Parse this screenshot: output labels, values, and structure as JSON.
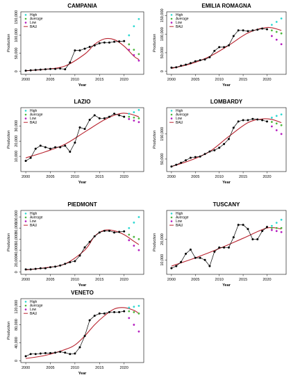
{
  "colors": {
    "high": "#2fd9d2",
    "average": "#4fb840",
    "low": "#b51fbf",
    "actual": "#000000",
    "bau": "#b8222e"
  },
  "legend": [
    "High",
    "Average",
    "Low",
    "BAU"
  ],
  "chart_data": [
    {
      "type": "line",
      "title": "CAMPANIA",
      "xlabel": "Year",
      "ylabel": "Production",
      "xlim": [
        1999,
        2024
      ],
      "ylim": [
        -8000,
        165000
      ],
      "xticks": [
        2000,
        2005,
        2010,
        2015,
        2020
      ],
      "yticks": [
        0,
        50000,
        100000,
        150000
      ],
      "ytick_labels": [
        "0",
        "50,000",
        "100,000",
        "150,000"
      ],
      "actual": {
        "x": [
          2000,
          2001,
          2002,
          2003,
          2004,
          2005,
          2006,
          2007,
          2008,
          2009,
          2010,
          2011,
          2012,
          2013,
          2014,
          2015,
          2016,
          2017,
          2018,
          2019,
          2020
        ],
        "y": [
          2000,
          3000,
          4000,
          5000,
          6000,
          7000,
          7000,
          8000,
          6000,
          25000,
          58000,
          58000,
          63000,
          68000,
          72000,
          78000,
          80000,
          80000,
          82000,
          83000,
          84000
        ]
      },
      "bau": {
        "x": [
          2000,
          2004,
          2008,
          2012,
          2014,
          2016,
          2018,
          2020,
          2022,
          2023
        ],
        "y": [
          2000,
          6000,
          15000,
          48000,
          75000,
          90000,
          88000,
          70000,
          42000,
          33000
        ]
      },
      "high": {
        "x": [
          2021,
          2022,
          2023
        ],
        "y": [
          100000,
          125000,
          145000
        ]
      },
      "average": {
        "x": [
          2021,
          2022,
          2023
        ],
        "y": [
          75000,
          60000,
          48000
        ]
      },
      "low": {
        "x": [
          2021,
          2022,
          2023
        ],
        "y": [
          60000,
          45000,
          30000
        ]
      }
    },
    {
      "type": "line",
      "title": "EMILIA ROMAGNA",
      "xlabel": "Year",
      "ylabel": "Production",
      "xlim": [
        1999,
        2024
      ],
      "ylim": [
        -8000,
        160000
      ],
      "xticks": [
        2000,
        2005,
        2010,
        2015,
        2020
      ],
      "yticks": [
        0,
        50000,
        100000,
        150000
      ],
      "ytick_labels": [
        "0",
        "50,000",
        "100,000",
        "150,000"
      ],
      "actual": {
        "x": [
          2000,
          2001,
          2002,
          2003,
          2004,
          2005,
          2006,
          2007,
          2008,
          2009,
          2010,
          2011,
          2012,
          2013,
          2014,
          2015,
          2016,
          2017,
          2018,
          2019,
          2020
        ],
        "y": [
          10000,
          11000,
          15000,
          18000,
          22000,
          27000,
          30000,
          32000,
          38000,
          55000,
          65000,
          65000,
          70000,
          95000,
          110000,
          110000,
          108000,
          110000,
          112000,
          115000,
          113000
        ]
      },
      "bau": {
        "x": [
          2000,
          2004,
          2008,
          2012,
          2016,
          2020,
          2023
        ],
        "y": [
          8000,
          20000,
          40000,
          70000,
          103000,
          118000,
          110000
        ]
      },
      "high": {
        "x": [
          2021,
          2022,
          2023
        ],
        "y": [
          125000,
          133000,
          142000
        ]
      },
      "average": {
        "x": [
          2021,
          2022,
          2023
        ],
        "y": [
          110000,
          106000,
          102000
        ]
      },
      "low": {
        "x": [
          2021,
          2022,
          2023
        ],
        "y": [
          95000,
          85000,
          73000
        ]
      }
    },
    {
      "type": "line",
      "title": "LAZIO",
      "xlabel": "Year",
      "ylabel": "Production",
      "xlim": [
        1999,
        2024
      ],
      "ylim": [
        0,
        42000
      ],
      "xticks": [
        2000,
        2005,
        2010,
        2015,
        2020
      ],
      "yticks": [
        10000,
        20000,
        30000
      ],
      "ytick_labels": [
        "10,000",
        "20,000",
        "30,000"
      ],
      "actual": {
        "x": [
          2000,
          2001,
          2002,
          2003,
          2004,
          2005,
          2006,
          2007,
          2008,
          2009,
          2010,
          2011,
          2012,
          2013,
          2014,
          2015,
          2016,
          2017,
          2018,
          2019,
          2020
        ],
        "y": [
          7000,
          9000,
          15000,
          17000,
          16000,
          15000,
          16000,
          16000,
          17000,
          13000,
          19000,
          29000,
          28000,
          34000,
          37000,
          35000,
          35000,
          36000,
          38000,
          37000,
          36000
        ]
      },
      "bau": {
        "x": [
          2000,
          2004,
          2008,
          2012,
          2016,
          2019,
          2021,
          2023
        ],
        "y": [
          9000,
          13000,
          18000,
          26000,
          34000,
          38000,
          38000,
          36000
        ]
      },
      "high": {
        "x": [
          2021,
          2022,
          2023
        ],
        "y": [
          38000,
          39000,
          40500
        ]
      },
      "average": {
        "x": [
          2021,
          2022,
          2023
        ],
        "y": [
          36000,
          35500,
          35000
        ]
      },
      "low": {
        "x": [
          2021,
          2022,
          2023
        ],
        "y": [
          34500,
          33500,
          32500
        ]
      }
    },
    {
      "type": "line",
      "title": "LOMBARDY",
      "xlabel": "Year",
      "ylabel": "Production",
      "xlim": [
        1999,
        2024
      ],
      "ylim": [
        0,
        255000
      ],
      "xticks": [
        2000,
        2005,
        2010,
        2015,
        2020
      ],
      "yticks": [
        50000,
        150000
      ],
      "ytick_labels": [
        "50,000",
        "150,000"
      ],
      "actual": {
        "x": [
          2000,
          2001,
          2002,
          2003,
          2004,
          2005,
          2006,
          2007,
          2008,
          2009,
          2010,
          2011,
          2012,
          2013,
          2014,
          2015,
          2016,
          2017,
          2018,
          2019,
          2020
        ],
        "y": [
          20000,
          27000,
          35000,
          45000,
          55000,
          58000,
          60000,
          70000,
          80000,
          85000,
          95000,
          110000,
          130000,
          175000,
          200000,
          205000,
          205000,
          210000,
          208000,
          205000,
          200000
        ]
      },
      "bau": {
        "x": [
          2000,
          2004,
          2008,
          2012,
          2016,
          2019,
          2021,
          2023
        ],
        "y": [
          20000,
          45000,
          80000,
          140000,
          195000,
          210000,
          208000,
          195000
        ]
      },
      "high": {
        "x": [
          2021,
          2022,
          2023
        ],
        "y": [
          215000,
          222000,
          228000
        ]
      },
      "average": {
        "x": [
          2021,
          2022,
          2023
        ],
        "y": [
          198000,
          192000,
          185000
        ]
      },
      "low": {
        "x": [
          2021,
          2022,
          2023
        ],
        "y": [
          180000,
          165000,
          150000
        ]
      }
    },
    {
      "type": "line",
      "title": "PIEDMONT",
      "xlabel": "Year",
      "ylabel": "Production",
      "xlim": [
        1999,
        2024
      ],
      "ylim": [
        -4000,
        112000
      ],
      "xticks": [
        2000,
        2005,
        2010,
        2015,
        2020
      ],
      "yticks": [
        0,
        20000,
        40000,
        60000,
        80000,
        100000
      ],
      "ytick_labels": [
        "0",
        "20,000",
        "40,000",
        "60,000",
        "80,000",
        "100,000"
      ],
      "actual": {
        "x": [
          2000,
          2001,
          2002,
          2003,
          2004,
          2005,
          2006,
          2007,
          2008,
          2009,
          2010,
          2011,
          2012,
          2013,
          2014,
          2015,
          2016,
          2017,
          2018,
          2019,
          2020
        ],
        "y": [
          5000,
          5000,
          6000,
          7000,
          7000,
          9000,
          10000,
          12000,
          15000,
          18000,
          20000,
          30000,
          45000,
          55000,
          65000,
          72000,
          75000,
          75000,
          72000,
          73000,
          74000
        ]
      },
      "bau": {
        "x": [
          2000,
          2004,
          2008,
          2012,
          2014,
          2016,
          2018,
          2020,
          2022,
          2023
        ],
        "y": [
          4000,
          8000,
          15000,
          40000,
          65000,
          76000,
          75000,
          68000,
          56000,
          50000
        ]
      },
      "high": {
        "x": [
          2021,
          2022,
          2023
        ],
        "y": [
          80000,
          90000,
          100000
        ]
      },
      "average": {
        "x": [
          2021,
          2022,
          2023
        ],
        "y": [
          68000,
          64000,
          60000
        ]
      },
      "low": {
        "x": [
          2021,
          2022,
          2023
        ],
        "y": [
          58000,
          48000,
          40000
        ]
      }
    },
    {
      "type": "line",
      "title": "TUSCANY",
      "xlabel": "Year",
      "ylabel": "Production",
      "xlim": [
        1999,
        2024
      ],
      "ylim": [
        3000,
        34000
      ],
      "xticks": [
        2000,
        2005,
        2010,
        2015,
        2020
      ],
      "yticks": [
        10000,
        20000
      ],
      "ytick_labels": [
        "10,000",
        "20,000"
      ],
      "actual": {
        "x": [
          2000,
          2001,
          2002,
          2003,
          2004,
          2005,
          2006,
          2007,
          2008,
          2009,
          2010,
          2011,
          2012,
          2013,
          2014,
          2015,
          2016,
          2017,
          2018,
          2019,
          2020
        ],
        "y": [
          6000,
          7000,
          9000,
          13000,
          15000,
          11000,
          11000,
          10000,
          7000,
          14000,
          16000,
          16000,
          16000,
          21000,
          27000,
          27000,
          25000,
          20000,
          20000,
          24000,
          26000
        ]
      },
      "bau": {
        "x": [
          2000,
          2005,
          2010,
          2015,
          2020,
          2023
        ],
        "y": [
          7000,
          11000,
          15500,
          20500,
          25500,
          25000
        ]
      },
      "high": {
        "x": [
          2021,
          2022,
          2023
        ],
        "y": [
          26500,
          28000,
          29500
        ]
      },
      "average": {
        "x": [
          2021,
          2022,
          2023
        ],
        "y": [
          25500,
          25500,
          25500
        ]
      },
      "low": {
        "x": [
          2021,
          2022,
          2023
        ],
        "y": [
          24500,
          24000,
          23500
        ]
      }
    },
    {
      "type": "line",
      "title": "VENETO",
      "xlabel": "Year",
      "ylabel": "Production",
      "xlim": [
        1999,
        2024
      ],
      "ylim": [
        -4000,
        138000
      ],
      "xticks": [
        2000,
        2005,
        2010,
        2015,
        2020
      ],
      "yticks": [
        0,
        40000,
        80000,
        120000
      ],
      "ytick_labels": [
        "0",
        "40,000",
        "80,000",
        "120,000"
      ],
      "actual": {
        "x": [
          2000,
          2001,
          2002,
          2003,
          2004,
          2005,
          2006,
          2007,
          2008,
          2009,
          2010,
          2011,
          2012,
          2013,
          2014,
          2015,
          2016,
          2017,
          2018,
          2019,
          2020
        ],
        "y": [
          10000,
          15000,
          15000,
          16000,
          17000,
          17000,
          18000,
          20000,
          18000,
          15000,
          16000,
          30000,
          55000,
          90000,
          100000,
          105000,
          105000,
          108000,
          108000,
          108000,
          110000
        ]
      },
      "bau": {
        "x": [
          2000,
          2004,
          2008,
          2010,
          2012,
          2014,
          2016,
          2018,
          2020,
          2022,
          2023
        ],
        "y": [
          5000,
          12000,
          25000,
          35000,
          55000,
          80000,
          100000,
          115000,
          118000,
          112000,
          105000
        ]
      },
      "high": {
        "x": [
          2021,
          2022,
          2023
        ],
        "y": [
          118000,
          120000,
          122000
        ]
      },
      "average": {
        "x": [
          2021,
          2022,
          2023
        ],
        "y": [
          110000,
          108000,
          105000
        ]
      },
      "low": {
        "x": [
          2021,
          2022,
          2023
        ],
        "y": [
          95000,
          80000,
          65000
        ]
      }
    }
  ]
}
